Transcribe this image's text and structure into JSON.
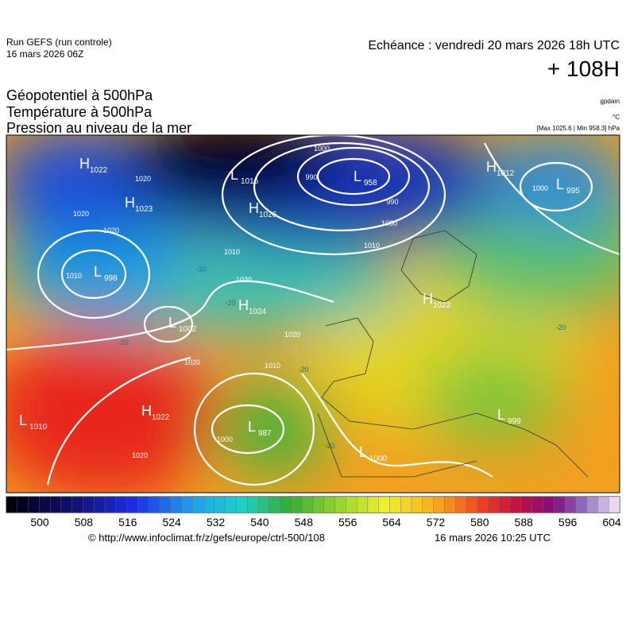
{
  "header": {
    "run": "Run GEFS (run controle)",
    "run_date": "16 mars 2026 06Z",
    "valid": "Echéance : vendredi 20 mars 2026 18h UTC",
    "lead": "+ 108H",
    "fields": [
      "Géopotentiel à 500hPa",
      "Température à 500hPa",
      "Pression au niveau de la mer"
    ],
    "units": [
      "gpdam",
      "°C",
      "[Max 1025.6 | Min 958.3] hPa"
    ]
  },
  "centers": [
    {
      "letter": "H",
      "value": 1022
    },
    {
      "letter": "L",
      "value": 1016
    },
    {
      "letter": "H",
      "value": 1023
    },
    {
      "letter": "H",
      "value": 1026
    },
    {
      "letter": "L",
      "value": 958
    },
    {
      "letter": "H",
      "value": 1012
    },
    {
      "letter": "L",
      "value": 995
    },
    {
      "letter": "L",
      "value": 998
    },
    {
      "letter": "L",
      "value": 1002
    },
    {
      "letter": "H",
      "value": 1024
    },
    {
      "letter": "H",
      "value": 1022
    },
    {
      "letter": "H",
      "value": 1022
    },
    {
      "letter": "L",
      "value": 1010
    },
    {
      "letter": "L",
      "value": 987
    },
    {
      "letter": "L",
      "value": 999
    },
    {
      "letter": "L",
      "value": 1000
    }
  ],
  "isobar_labels": [
    1020,
    1020,
    1020,
    1010,
    1010,
    1020,
    1020,
    1000,
    990,
    990,
    1000,
    1010,
    1020,
    1020,
    1010,
    1000,
    1000
  ],
  "isotherm_labels": [
    -30,
    -30,
    -20,
    -20,
    -20,
    -20,
    -20
  ],
  "colorbar": {
    "ticks": [
      500,
      508,
      516,
      524,
      532,
      540,
      548,
      556,
      564,
      572,
      580,
      588,
      596,
      604
    ]
  },
  "footer": {
    "source": "© http://www.infoclimat.fr/z/gefs/europe/ctrl-500/108",
    "created": "16 mars 2026 10:25 UTC"
  }
}
